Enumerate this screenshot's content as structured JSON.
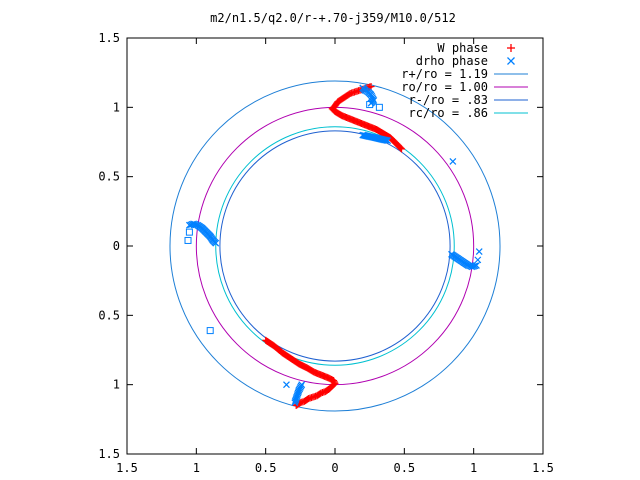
{
  "chart_data": {
    "type": "scatter",
    "title": "m2/n1.5/q2.0/r-+.70-j359/M10.0/512",
    "xlabel": "",
    "ylabel": "",
    "xlim": [
      -1.5,
      1.5
    ],
    "ylim": [
      -1.5,
      1.5
    ],
    "x_tick_values": [
      -1.5,
      -1,
      -0.5,
      0,
      0.5,
      1,
      1.5
    ],
    "x_tick_labels": [
      "1.5",
      "1",
      "0.5",
      "0",
      "0.5",
      "1",
      "1.5"
    ],
    "y_tick_values": [
      1.5,
      1,
      0.5,
      0,
      -0.5,
      -1,
      -1.5
    ],
    "y_tick_labels": [
      "1.5",
      "1",
      "0.5",
      "0",
      "0.5",
      "1",
      "1.5"
    ],
    "grid": false,
    "legend_position": "top-right",
    "series": [
      {
        "name": "W phase",
        "marker": "plus",
        "color": "#ff0000",
        "points": [
          [
            0.26,
            1.15
          ],
          [
            0.23,
            1.14
          ],
          [
            0.2,
            1.13
          ],
          [
            0.17,
            1.12
          ],
          [
            0.14,
            1.11
          ],
          [
            0.11,
            1.1
          ],
          [
            0.08,
            1.08
          ],
          [
            0.05,
            1.06
          ],
          [
            0.02,
            1.04
          ],
          [
            0.0,
            1.01
          ],
          [
            -0.02,
            0.99
          ],
          [
            0.0,
            0.97
          ],
          [
            0.05,
            0.94
          ],
          [
            0.1,
            0.92
          ],
          [
            0.15,
            0.9
          ],
          [
            0.2,
            0.88
          ],
          [
            0.25,
            0.86
          ],
          [
            0.3,
            0.84
          ],
          [
            0.35,
            0.81
          ],
          [
            0.4,
            0.78
          ],
          [
            0.44,
            0.74
          ],
          [
            0.48,
            0.7
          ],
          [
            -0.28,
            -1.15
          ],
          [
            -0.25,
            -1.13
          ],
          [
            -0.22,
            -1.12
          ],
          [
            -0.19,
            -1.1
          ],
          [
            -0.16,
            -1.09
          ],
          [
            -0.13,
            -1.08
          ],
          [
            -0.1,
            -1.06
          ],
          [
            -0.07,
            -1.05
          ],
          [
            -0.04,
            -1.03
          ],
          [
            -0.02,
            -1.01
          ],
          [
            0.0,
            -0.99
          ],
          [
            -0.01,
            -0.97
          ],
          [
            -0.05,
            -0.95
          ],
          [
            -0.1,
            -0.93
          ],
          [
            -0.15,
            -0.91
          ],
          [
            -0.2,
            -0.88
          ],
          [
            -0.26,
            -0.85
          ],
          [
            -0.32,
            -0.81
          ],
          [
            -0.38,
            -0.77
          ],
          [
            -0.44,
            -0.72
          ],
          [
            -0.5,
            -0.68
          ]
        ]
      },
      {
        "name": "drho phase",
        "marker": "cross",
        "color": "#0080ff",
        "points": [
          [
            0.2,
            1.14
          ],
          [
            0.22,
            1.12
          ],
          [
            0.24,
            1.11
          ],
          [
            0.26,
            1.09
          ],
          [
            0.27,
            1.07
          ],
          [
            0.28,
            1.05
          ],
          [
            0.26,
            1.03
          ],
          [
            -1.05,
            0.15
          ],
          [
            -1.02,
            0.16
          ],
          [
            -0.99,
            0.15
          ],
          [
            -0.96,
            0.13
          ],
          [
            -0.93,
            0.1
          ],
          [
            -0.9,
            0.07
          ],
          [
            -0.88,
            0.04
          ],
          [
            -0.86,
            0.02
          ],
          [
            0.84,
            -0.06
          ],
          [
            0.87,
            -0.08
          ],
          [
            0.9,
            -0.1
          ],
          [
            0.93,
            -0.12
          ],
          [
            0.96,
            -0.14
          ],
          [
            0.99,
            -0.15
          ],
          [
            1.02,
            -0.14
          ],
          [
            -0.29,
            -1.13
          ],
          [
            -0.28,
            -1.1
          ],
          [
            -0.27,
            -1.07
          ],
          [
            -0.26,
            -1.04
          ],
          [
            -0.25,
            -1.02
          ],
          [
            -0.24,
            -1.0
          ],
          [
            0.85,
            0.61
          ],
          [
            1.04,
            -0.04
          ],
          [
            -0.35,
            -1.0
          ],
          [
            0.2,
            0.8
          ],
          [
            0.38,
            0.76
          ],
          [
            1.03,
            -0.1
          ]
        ]
      }
    ],
    "open_square_points": [
      [
        0.25,
        1.02
      ],
      [
        0.32,
        1.0
      ],
      [
        -1.05,
        0.1
      ],
      [
        -1.06,
        0.04
      ],
      [
        -0.9,
        -0.61
      ]
    ],
    "circles": [
      {
        "name": "r+/ro = 1.19",
        "radius": 1.19,
        "color": "#1e7fd6"
      },
      {
        "name": "ro/ro = 1.00",
        "radius": 1.0,
        "color": "#b000b0"
      },
      {
        "name": "r-/ro = .83",
        "radius": 0.83,
        "color": "#1e60d0"
      },
      {
        "name": "rc/ro = .86",
        "radius": 0.86,
        "color": "#00c0d0"
      }
    ]
  }
}
